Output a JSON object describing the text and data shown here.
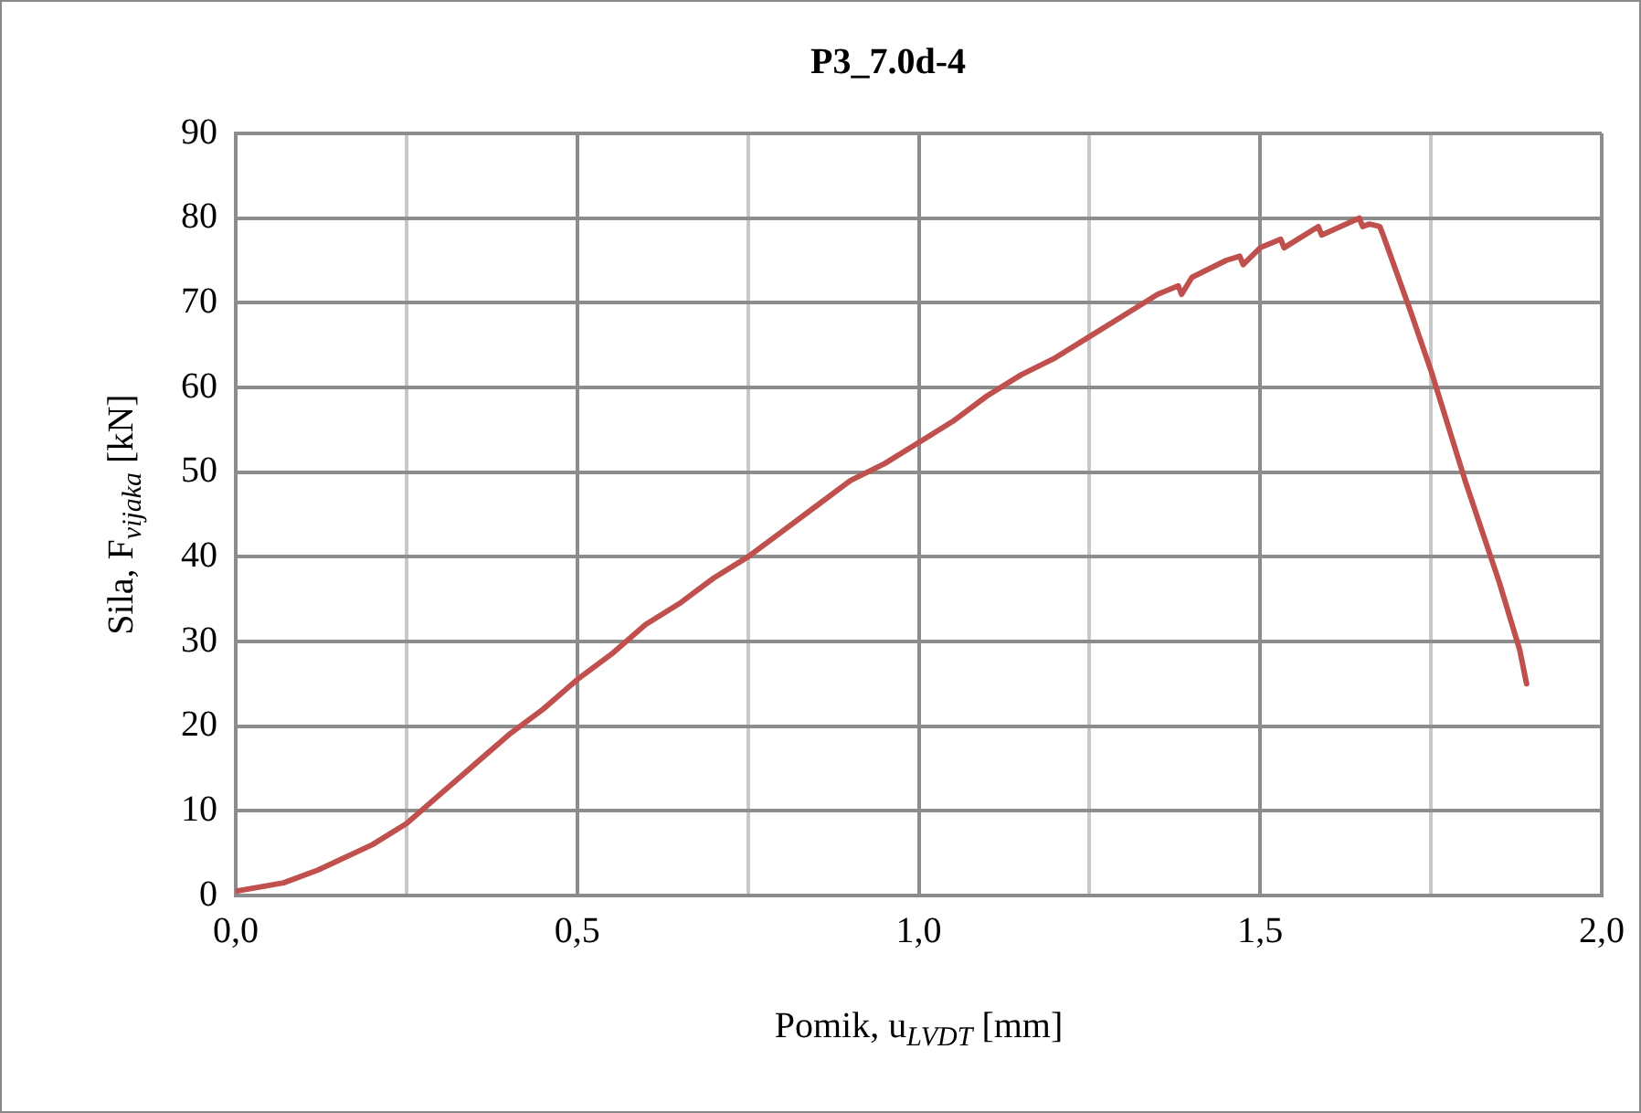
{
  "chart_data": {
    "type": "line",
    "title": "P3_7.0d-4",
    "xlabel": "Pomik, u$_{LVDT}$ [mm]",
    "ylabel": "Sila, F$_{vijaka}$ [kN]",
    "series": [
      {
        "color": "#c0504d",
        "x": [
          0,
          0.07,
          0.12,
          0.2,
          0.25,
          0.3,
          0.35,
          0.4,
          0.45,
          0.5,
          0.55,
          0.6,
          0.65,
          0.7,
          0.75,
          0.8,
          0.85,
          0.9,
          0.95,
          1.0,
          1.05,
          1.1,
          1.15,
          1.2,
          1.25,
          1.3,
          1.35,
          1.38,
          1.385,
          1.4,
          1.45,
          1.47,
          1.475,
          1.5,
          1.53,
          1.535,
          1.585,
          1.59,
          1.645,
          1.65,
          1.66,
          1.675,
          1.68,
          1.72,
          1.75,
          1.8,
          1.85,
          1.88,
          1.89
        ],
        "values": [
          0.5,
          1.5,
          3,
          6,
          8.5,
          12,
          15.5,
          19,
          22,
          25.5,
          28.5,
          32,
          34.5,
          37.5,
          40,
          43,
          46,
          49,
          51,
          53.5,
          56,
          59,
          61.5,
          63.5,
          66,
          68.5,
          71,
          72,
          71,
          73,
          75,
          75.5,
          74.5,
          76.5,
          77.5,
          76.5,
          79,
          78,
          80,
          79,
          79.3,
          79,
          78,
          69,
          62,
          49,
          37,
          29,
          25
        ]
      }
    ],
    "xlim": [
      0,
      2
    ],
    "xticks": [
      {
        "value": 0,
        "label": "0,0"
      },
      {
        "value": 0.25,
        "label": null
      },
      {
        "value": 0.5,
        "label": "0,5"
      },
      {
        "value": 0.75,
        "label": null
      },
      {
        "value": 1,
        "label": "1,0"
      },
      {
        "value": 1.25,
        "label": null
      },
      {
        "value": 1.5,
        "label": "1,5"
      },
      {
        "value": 1.75,
        "label": null
      },
      {
        "value": 2,
        "label": "2,0"
      }
    ],
    "ylim": [
      0,
      90
    ],
    "yticks": [
      0,
      10,
      20,
      30,
      40,
      50,
      60,
      70,
      80,
      90
    ],
    "grid": true,
    "legend": false,
    "marker": "none",
    "line_style": "solid"
  }
}
